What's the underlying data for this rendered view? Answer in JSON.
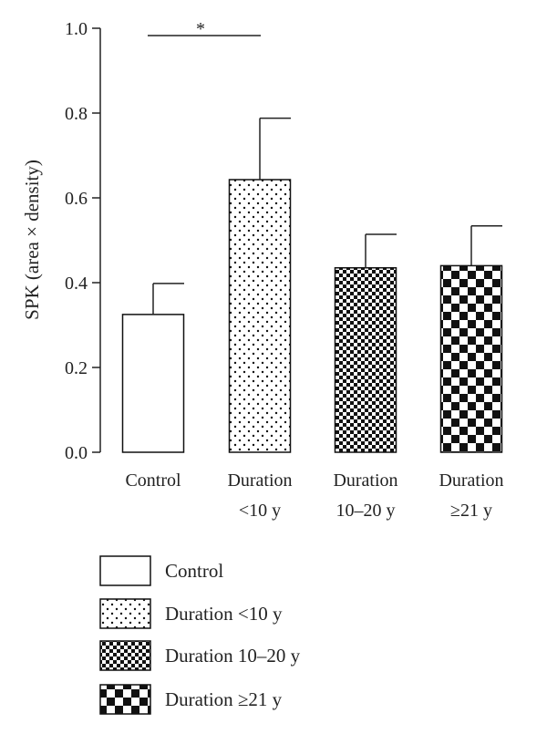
{
  "chart_data": {
    "type": "bar",
    "ylabel": "SPK (area × density)",
    "ylim": [
      0,
      1.0
    ],
    "yticks": [
      "0.0",
      "0.2",
      "0.4",
      "0.6",
      "0.8",
      "1.0"
    ],
    "yticks_values": [
      0,
      0.2,
      0.4,
      0.6,
      0.8,
      1.0
    ],
    "categories": [
      {
        "line1": "Control",
        "line2": ""
      },
      {
        "line1": "Duration",
        "line2": "<10 y"
      },
      {
        "line1": "Duration",
        "line2": "10–20 y"
      },
      {
        "line1": "Duration",
        "line2": "≥21 y"
      }
    ],
    "values": [
      0.325,
      0.643,
      0.435,
      0.44
    ],
    "errors": [
      0.073,
      0.145,
      0.079,
      0.094
    ],
    "patterns": [
      "blank",
      "dots",
      "fine-check",
      "coarse-check"
    ],
    "significance": {
      "from": 0,
      "to": 1,
      "y": 0.985,
      "label": "*"
    },
    "legend": [
      "Control",
      "Duration <10 y",
      "Duration 10–20 y",
      "Duration ≥21 y"
    ],
    "legend_position": "bottom",
    "grid": false
  }
}
